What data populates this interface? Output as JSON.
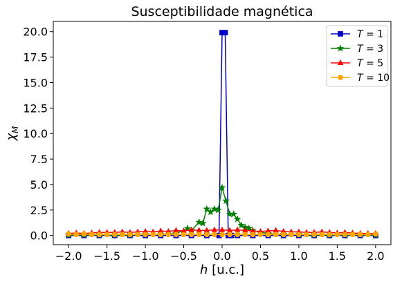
{
  "chart_data": {
    "type": "line",
    "title": "Susceptibilidade magnética",
    "xlabel_var": "h",
    "xlabel_unit": " [u.c.]",
    "ylabel_var": "χ",
    "ylabel_sub": "M",
    "xlim": [
      -2.2,
      2.2
    ],
    "ylim": [
      -0.9,
      21.0
    ],
    "xticks": [
      -2.0,
      -1.5,
      -1.0,
      -0.5,
      0.0,
      0.5,
      1.0,
      1.5,
      2.0
    ],
    "xtick_labels": [
      "−2.0",
      "−1.5",
      "−1.0",
      "−0.5",
      "0.0",
      "0.5",
      "1.0",
      "1.5",
      "2.0"
    ],
    "yticks": [
      0.0,
      2.5,
      5.0,
      7.5,
      10.0,
      12.5,
      15.0,
      17.5,
      20.0
    ],
    "ytick_labels": [
      "0.0",
      "2.5",
      "5.0",
      "7.5",
      "10.0",
      "12.5",
      "15.0",
      "17.5",
      "20.0"
    ],
    "grid": false,
    "legend_position": "top-right",
    "series": [
      {
        "name": "T = 1",
        "legend_var": "T",
        "legend_val": "1",
        "color": "#0000cc",
        "marker": "square",
        "x": [
          -2.0,
          -1.8,
          -1.6,
          -1.4,
          -1.2,
          -1.0,
          -0.8,
          -0.6,
          -0.4,
          -0.2,
          -0.04,
          0.0,
          0.04,
          0.08,
          0.12,
          0.2,
          0.4,
          0.6,
          0.8,
          1.0,
          1.2,
          1.4,
          1.6,
          1.8,
          2.0
        ],
        "y": [
          0.0,
          0.0,
          0.0,
          0.0,
          0.0,
          0.0,
          0.0,
          0.0,
          0.0,
          0.0,
          0.0,
          19.9,
          19.9,
          0.0,
          0.0,
          0.0,
          0.0,
          0.0,
          0.0,
          0.0,
          0.0,
          0.0,
          0.0,
          0.0,
          0.0
        ]
      },
      {
        "name": "T = 3",
        "legend_var": "T",
        "legend_val": "3",
        "color": "#008000",
        "marker": "star",
        "x": [
          -2.0,
          -1.8,
          -1.6,
          -1.4,
          -1.2,
          -1.0,
          -0.8,
          -0.6,
          -0.45,
          -0.4,
          -0.3,
          -0.25,
          -0.2,
          -0.15,
          -0.1,
          -0.05,
          0.0,
          0.05,
          0.1,
          0.15,
          0.2,
          0.25,
          0.3,
          0.35,
          0.4,
          0.5,
          0.6,
          0.8,
          1.0,
          1.2,
          1.4,
          1.6,
          1.8,
          2.0
        ],
        "y": [
          0.05,
          0.05,
          0.05,
          0.05,
          0.05,
          0.1,
          0.1,
          0.2,
          0.7,
          0.5,
          1.3,
          1.2,
          2.6,
          2.3,
          2.6,
          2.5,
          4.7,
          3.4,
          2.1,
          2.1,
          1.6,
          1.0,
          0.8,
          0.7,
          0.5,
          0.3,
          0.2,
          0.1,
          0.1,
          0.05,
          0.05,
          0.05,
          0.05,
          0.05
        ]
      },
      {
        "name": "T = 5",
        "legend_var": "T",
        "legend_val": "5",
        "color": "#ff0000",
        "marker": "triangle",
        "x": [
          -2.0,
          -1.9,
          -1.8,
          -1.7,
          -1.6,
          -1.5,
          -1.4,
          -1.3,
          -1.2,
          -1.1,
          -1.0,
          -0.9,
          -0.8,
          -0.7,
          -0.6,
          -0.5,
          -0.4,
          -0.3,
          -0.2,
          -0.1,
          0.0,
          0.1,
          0.2,
          0.3,
          0.4,
          0.5,
          0.6,
          0.7,
          0.8,
          0.9,
          1.0,
          1.1,
          1.2,
          1.3,
          1.4,
          1.5,
          1.6,
          1.7,
          1.8,
          1.9,
          2.0
        ],
        "y": [
          0.2,
          0.25,
          0.2,
          0.25,
          0.3,
          0.3,
          0.3,
          0.35,
          0.3,
          0.35,
          0.4,
          0.35,
          0.45,
          0.4,
          0.5,
          0.45,
          0.55,
          0.5,
          0.5,
          0.55,
          0.55,
          0.5,
          0.55,
          0.5,
          0.45,
          0.4,
          0.45,
          0.5,
          0.4,
          0.35,
          0.35,
          0.3,
          0.3,
          0.35,
          0.3,
          0.25,
          0.3,
          0.25,
          0.2,
          0.2,
          0.2
        ]
      },
      {
        "name": "T = 10",
        "legend_var": "T",
        "legend_val": "10",
        "color": "#ffa500",
        "marker": "circle",
        "x": [
          -2.0,
          -1.9,
          -1.8,
          -1.7,
          -1.6,
          -1.5,
          -1.4,
          -1.3,
          -1.2,
          -1.1,
          -1.0,
          -0.9,
          -0.8,
          -0.7,
          -0.6,
          -0.5,
          -0.4,
          -0.3,
          -0.2,
          -0.1,
          0.0,
          0.1,
          0.2,
          0.3,
          0.4,
          0.5,
          0.6,
          0.7,
          0.8,
          0.9,
          1.0,
          1.1,
          1.2,
          1.3,
          1.4,
          1.5,
          1.6,
          1.7,
          1.8,
          1.9,
          2.0
        ],
        "y": [
          0.15,
          0.1,
          0.15,
          0.1,
          0.1,
          0.1,
          0.1,
          0.1,
          0.1,
          0.1,
          0.1,
          0.1,
          0.1,
          0.1,
          0.1,
          0.1,
          0.1,
          0.1,
          0.1,
          0.1,
          0.1,
          0.1,
          0.1,
          0.1,
          0.1,
          0.1,
          0.1,
          0.1,
          0.1,
          0.1,
          0.1,
          0.1,
          0.1,
          0.1,
          0.1,
          0.1,
          0.1,
          0.1,
          0.1,
          0.1,
          0.15
        ]
      }
    ]
  }
}
